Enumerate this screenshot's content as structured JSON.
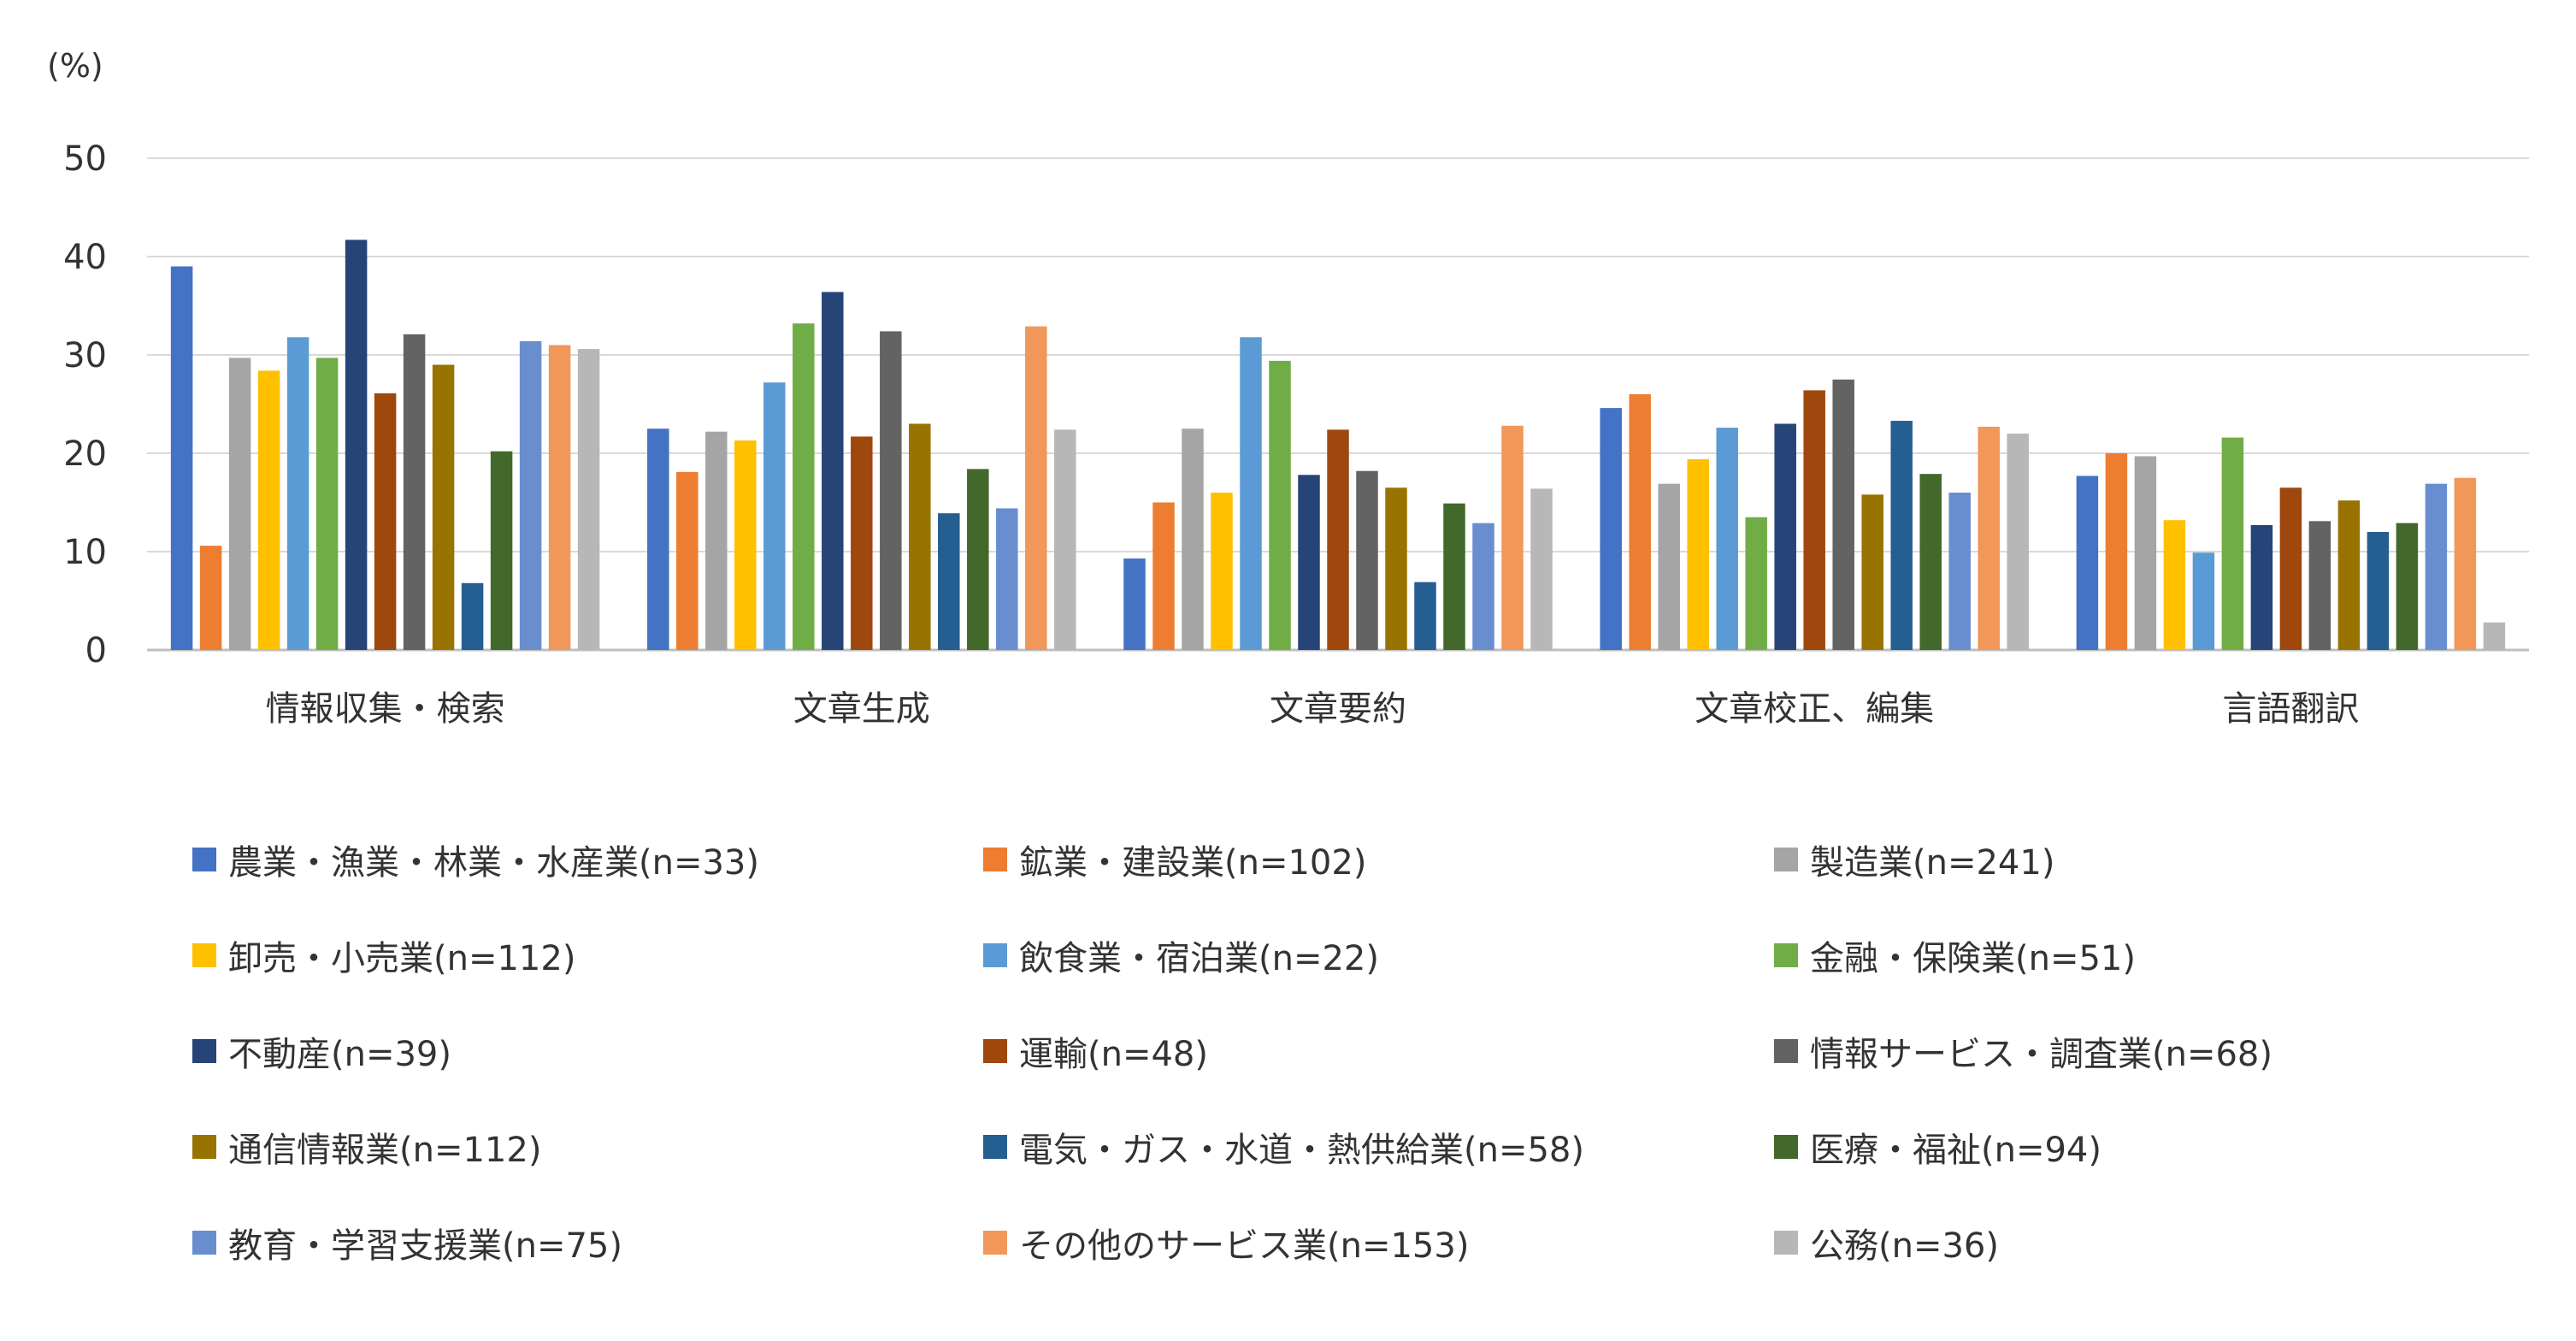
{
  "chart_data": {
    "type": "bar",
    "ylabel": "(%)",
    "ylim": [
      0,
      50
    ],
    "yticks": [
      0,
      10,
      20,
      30,
      40,
      50
    ],
    "grid": true,
    "legend_position": "bottom",
    "categories": [
      "情報収集・検索",
      "文章生成",
      "文章要約",
      "文章校正、編集",
      "言語翻訳"
    ],
    "series": [
      {
        "name": "農業・漁業・林業・水産業(n=33)",
        "color": "#4472C4",
        "values": [
          39.0,
          22.5,
          9.3,
          24.6,
          17.7
        ]
      },
      {
        "name": "鉱業・建設業(n=102)",
        "color": "#ED7D31",
        "values": [
          10.6,
          18.1,
          15.0,
          26.0,
          20.0
        ]
      },
      {
        "name": "製造業(n=241)",
        "color": "#A5A5A5",
        "values": [
          29.7,
          22.2,
          22.5,
          16.9,
          19.7
        ]
      },
      {
        "name": "卸売・小売業(n=112)",
        "color": "#FFC000",
        "values": [
          28.4,
          21.3,
          16.0,
          19.4,
          13.2
        ]
      },
      {
        "name": "飲食業・宿泊業(n=22)",
        "color": "#5B9BD5",
        "values": [
          31.8,
          27.2,
          31.8,
          22.6,
          9.9
        ]
      },
      {
        "name": "金融・保険業(n=51)",
        "color": "#70AD47",
        "values": [
          29.7,
          33.2,
          29.4,
          13.5,
          21.6
        ]
      },
      {
        "name": "不動産(n=39)",
        "color": "#264478",
        "values": [
          41.7,
          36.4,
          17.8,
          23.0,
          12.7
        ]
      },
      {
        "name": "運輸(n=48)",
        "color": "#9E480E",
        "values": [
          26.1,
          21.7,
          22.4,
          26.4,
          16.5
        ]
      },
      {
        "name": "情報サービス・調査業(n=68)",
        "color": "#636363",
        "values": [
          32.1,
          32.4,
          18.2,
          27.5,
          13.1
        ]
      },
      {
        "name": "通信情報業(n=112)",
        "color": "#997300",
        "values": [
          29.0,
          23.0,
          16.5,
          15.8,
          15.2
        ]
      },
      {
        "name": "電気・ガス・水道・熱供給業(n=58)",
        "color": "#255E91",
        "values": [
          6.8,
          13.9,
          6.9,
          23.3,
          12.0
        ]
      },
      {
        "name": "医療・福祉(n=94)",
        "color": "#43682B",
        "values": [
          20.2,
          18.4,
          14.9,
          17.9,
          12.9
        ]
      },
      {
        "name": "教育・学習支援業(n=75)",
        "color": "#698ED0",
        "values": [
          31.4,
          14.4,
          12.9,
          16.0,
          16.9
        ]
      },
      {
        "name": "その他のサービス業(n=153)",
        "color": "#F1975A",
        "values": [
          31.0,
          32.9,
          22.8,
          22.7,
          17.5
        ]
      },
      {
        "name": "公務(n=36)",
        "color": "#B7B7B7",
        "values": [
          30.6,
          22.4,
          16.4,
          22.0,
          2.8
        ]
      }
    ]
  }
}
